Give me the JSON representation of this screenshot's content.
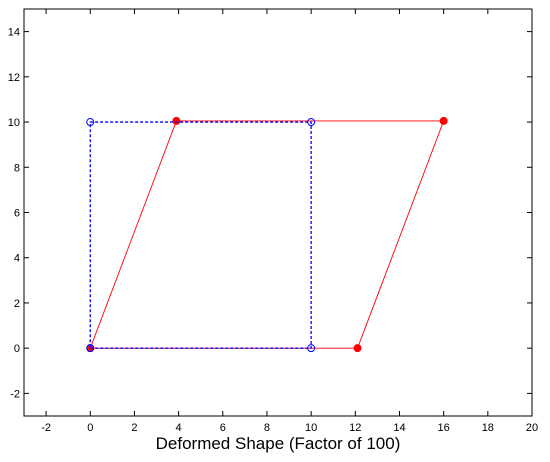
{
  "chart_data": {
    "type": "line",
    "title": "",
    "xlabel": "Deformed Shape (Factor of 100)",
    "ylabel": "",
    "xlim": [
      -3,
      20
    ],
    "ylim": [
      -3,
      15
    ],
    "xticks": [
      -2,
      0,
      2,
      4,
      6,
      8,
      10,
      12,
      14,
      16,
      18,
      20
    ],
    "yticks": [
      -2,
      0,
      2,
      4,
      6,
      8,
      10,
      12,
      14
    ],
    "grid": false,
    "series": [
      {
        "color": "#ff0000",
        "line_style": "solid",
        "marker": "filled-circle",
        "x": [
          0,
          12.1,
          16.0,
          3.9,
          0
        ],
        "y": [
          0,
          0,
          10.05,
          10.05,
          0
        ]
      },
      {
        "color": "#0000ff",
        "line_style": "dashed",
        "marker": "open-circle",
        "x": [
          0,
          10,
          10,
          0,
          0
        ],
        "y": [
          0,
          0,
          10,
          10,
          0
        ]
      }
    ]
  }
}
